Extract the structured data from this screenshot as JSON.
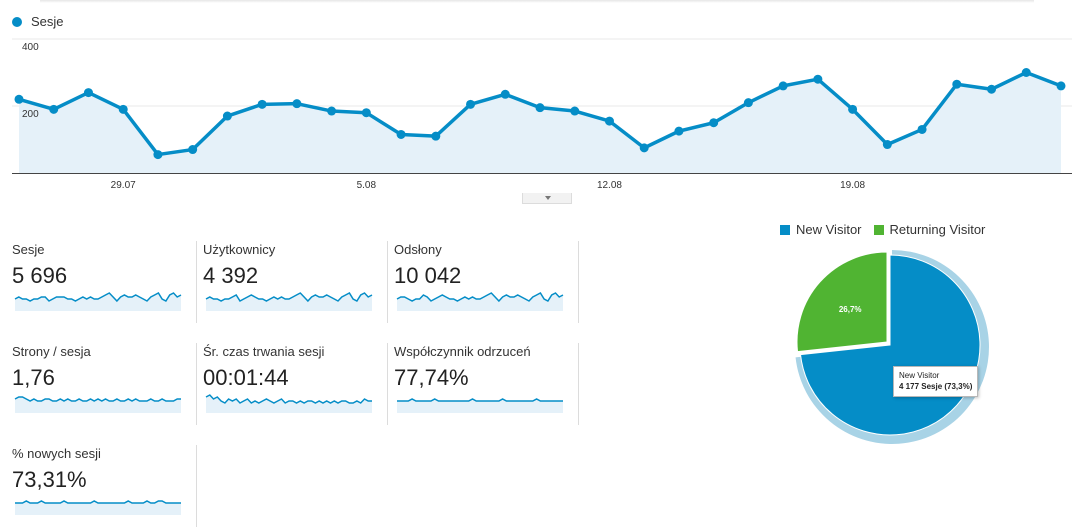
{
  "colors": {
    "line": "#058dc7",
    "area": "#e5f1f9",
    "new_visitor": "#058dc7",
    "returning_visitor": "#50b432"
  },
  "main_chart": {
    "legend_label": "Sesje",
    "y_ticks": [
      "400",
      "200"
    ],
    "x_ticks": [
      "29.07",
      "5.08",
      "12.08",
      "19.08"
    ],
    "chart_data": {
      "type": "line",
      "series": [
        {
          "name": "Sesje",
          "values": [
            220,
            190,
            240,
            190,
            55,
            70,
            170,
            205,
            207,
            185,
            180,
            115,
            110,
            205,
            235,
            195,
            185,
            155,
            75,
            125,
            150,
            210,
            260,
            280,
            190,
            85,
            130,
            265,
            250,
            300,
            260
          ]
        }
      ],
      "ylim": [
        0,
        400
      ]
    }
  },
  "metrics": [
    {
      "label": "Sesje",
      "value": "5 696",
      "spark": [
        5,
        6,
        5,
        5,
        4,
        5,
        5,
        6,
        6,
        4,
        5,
        6,
        6,
        6,
        5,
        5,
        4,
        5,
        6,
        5,
        6,
        5,
        5,
        6,
        7,
        8,
        6,
        4,
        6,
        7,
        6,
        6,
        7,
        6,
        5,
        4,
        6,
        7,
        8,
        5,
        4,
        7,
        8,
        6,
        7
      ]
    },
    {
      "label": "Użytkownicy",
      "value": "4 392",
      "spark": [
        5,
        6,
        5,
        5,
        4,
        5,
        5,
        6,
        7,
        4,
        5,
        6,
        7,
        6,
        5,
        5,
        4,
        5,
        6,
        5,
        6,
        5,
        5,
        6,
        7,
        8,
        6,
        4,
        6,
        7,
        6,
        6,
        7,
        6,
        5,
        4,
        6,
        7,
        8,
        5,
        4,
        7,
        8,
        6,
        7
      ]
    },
    {
      "label": "Odsłony",
      "value": "10 042",
      "spark": [
        5,
        6,
        6,
        5,
        4,
        5,
        5,
        7,
        6,
        4,
        5,
        6,
        7,
        6,
        5,
        5,
        4,
        5,
        6,
        5,
        6,
        5,
        5,
        6,
        7,
        8,
        6,
        4,
        6,
        7,
        6,
        6,
        7,
        6,
        5,
        4,
        6,
        7,
        8,
        5,
        4,
        7,
        8,
        6,
        7
      ]
    },
    {
      "label": "Strony / sesja",
      "value": "1,76",
      "spark": [
        6,
        7,
        7,
        6,
        5,
        6,
        5,
        5,
        6,
        6,
        5,
        5,
        6,
        5,
        6,
        5,
        5,
        6,
        5,
        5,
        6,
        5,
        6,
        5,
        6,
        5,
        5,
        6,
        5,
        5,
        6,
        5,
        6,
        5,
        5,
        5,
        6,
        5,
        5,
        6,
        5,
        5,
        5,
        6,
        6
      ]
    },
    {
      "label": "Śr. czas trwania sesji",
      "value": "00:01:44",
      "spark": [
        7,
        8,
        6,
        7,
        5,
        4,
        6,
        5,
        6,
        4,
        5,
        6,
        4,
        5,
        4,
        5,
        6,
        5,
        4,
        5,
        6,
        4,
        5,
        5,
        4,
        5,
        4,
        5,
        5,
        4,
        5,
        4,
        5,
        4,
        5,
        4,
        5,
        5,
        4,
        4,
        5,
        4,
        6,
        5,
        5
      ]
    },
    {
      "label": "Współczynnik odrzuceń",
      "value": "77,74%",
      "spark": [
        5,
        5,
        5,
        5,
        6,
        5,
        5,
        5,
        5,
        5,
        6,
        5,
        5,
        5,
        5,
        5,
        5,
        5,
        5,
        5,
        6,
        5,
        5,
        5,
        5,
        5,
        5,
        5,
        6,
        5,
        5,
        5,
        5,
        5,
        5,
        5,
        5,
        6,
        5,
        5,
        5,
        5,
        5,
        5,
        5
      ]
    },
    {
      "label": "% nowych sesji",
      "value": "73,31%",
      "spark": [
        5,
        5,
        5,
        6,
        5,
        5,
        5,
        6,
        5,
        5,
        5,
        5,
        5,
        6,
        5,
        5,
        5,
        5,
        5,
        5,
        5,
        6,
        5,
        5,
        5,
        5,
        5,
        5,
        5,
        5,
        6,
        5,
        5,
        5,
        5,
        6,
        5,
        5,
        6,
        6,
        5,
        5,
        5,
        5,
        5
      ]
    }
  ],
  "pie": {
    "legend": [
      "New Visitor",
      "Returning Visitor"
    ],
    "returning_label": "26,7%",
    "tooltip_line1": "New Visitor",
    "tooltip_line2": "4 177 Sesje (73,3%)",
    "chart_data": {
      "type": "pie",
      "labels": [
        "New Visitor",
        "Returning Visitor"
      ],
      "values": [
        73.3,
        26.7
      ]
    }
  }
}
